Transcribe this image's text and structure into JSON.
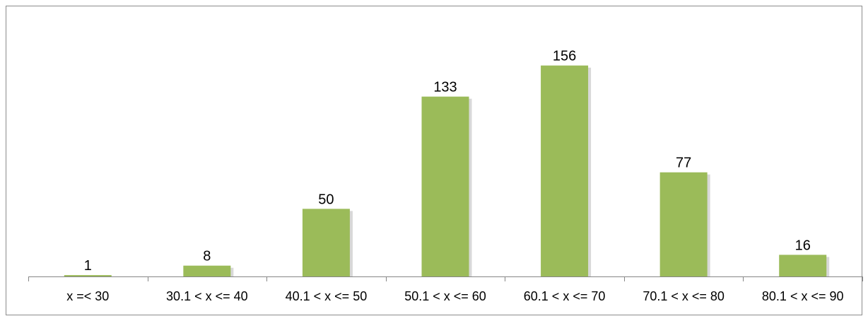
{
  "chart_data": {
    "type": "bar",
    "categories": [
      "x =< 30",
      "30.1 < x <= 40",
      "40.1 < x <= 50",
      "50.1 < x <= 60",
      "60.1 < x <= 70",
      "70.1 < x <= 80",
      "80.1 < x <= 90"
    ],
    "values": [
      1,
      8,
      50,
      133,
      156,
      77,
      16
    ],
    "title": "",
    "xlabel": "",
    "ylabel": "",
    "ylim": [
      0,
      160
    ],
    "grid": false,
    "legend": "none",
    "data_labels": true,
    "colors": {
      "bar": "#9bbb59",
      "bar_shadow": "#b8b8b8",
      "axis": "#868686",
      "frame": "#8c8c8c"
    }
  }
}
